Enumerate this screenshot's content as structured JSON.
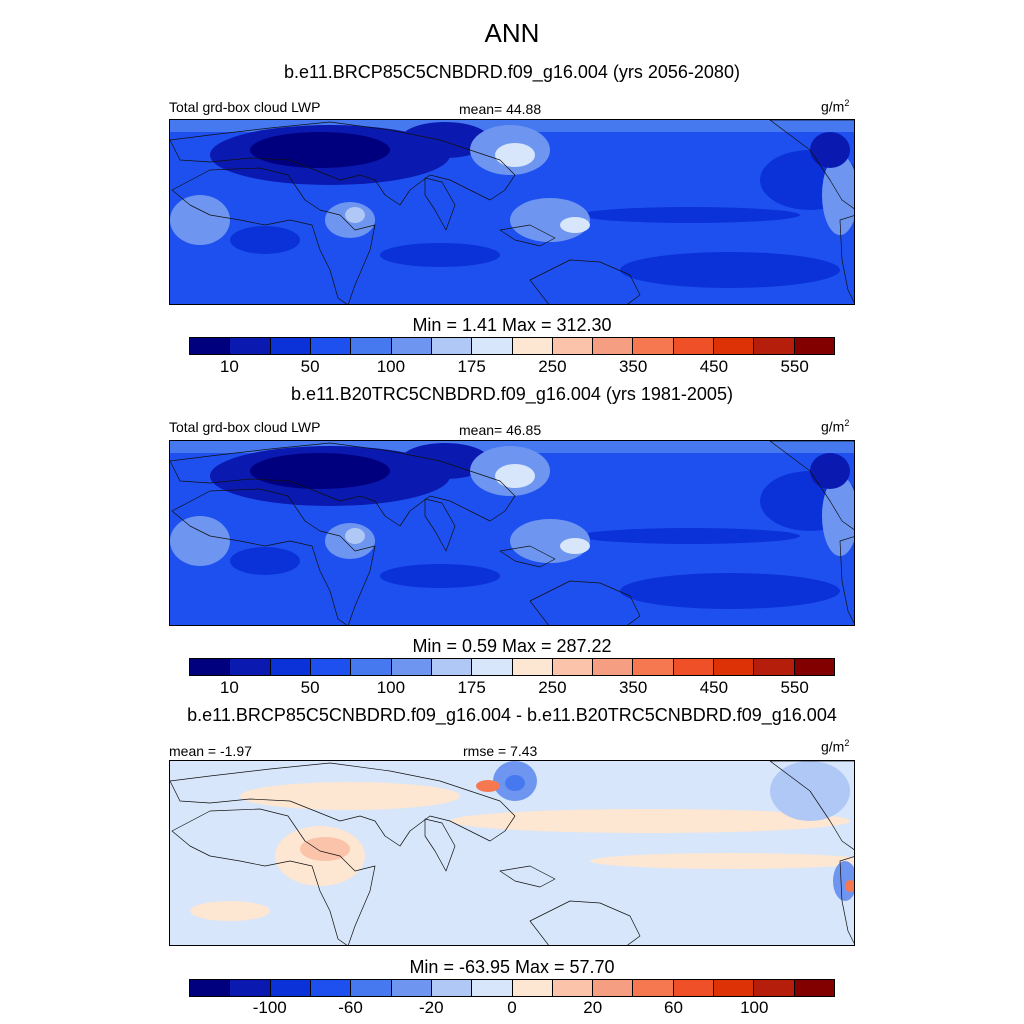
{
  "title": "ANN",
  "panels": [
    {
      "case": "b.e11.BRCP85C5CNBDRD.f09_g16.004 (yrs 2056-2080)",
      "left_label": "Total grd-box cloud LWP",
      "center_label": "mean=  44.88",
      "units": "g/m",
      "units_exp": "2",
      "minmax": "Min =   1.41 Max = 312.30",
      "kind": "abs"
    },
    {
      "case": "b.e11.B20TRC5CNBDRD.f09_g16.004 (yrs 1981-2005)",
      "left_label": "Total grd-box cloud LWP",
      "center_label": "mean=  46.85",
      "units": "g/m",
      "units_exp": "2",
      "minmax": "Min =   0.59 Max = 287.22",
      "kind": "abs"
    },
    {
      "case": "b.e11.BRCP85C5CNBDRD.f09_g16.004 - b.e11.B20TRC5CNBDRD.f09_g16.004",
      "left_label": "mean =  -1.97",
      "center_label": "rmse =   7.43",
      "units": "g/m",
      "units_exp": "2",
      "minmax": "Min = -63.95 Max =  57.70",
      "kind": "diff"
    }
  ],
  "colorbar_abs": {
    "colors": [
      "#00007f",
      "#0a19b0",
      "#0a32d8",
      "#1e50f0",
      "#4678f0",
      "#6e96f0",
      "#afc8f5",
      "#d7e6fa",
      "#fde6d2",
      "#fac3aa",
      "#f59e82",
      "#f57850",
      "#f05028",
      "#dc3205",
      "#b41e0a",
      "#820000"
    ],
    "ticks": [
      "10",
      "50",
      "100",
      "175",
      "250",
      "350",
      "450",
      "550"
    ]
  },
  "colorbar_diff": {
    "colors": [
      "#00007f",
      "#0a19b0",
      "#0a32d8",
      "#1e50f0",
      "#4678f0",
      "#6e96f0",
      "#afc8f5",
      "#d7e6fa",
      "#fde6d2",
      "#fac3aa",
      "#f59e82",
      "#f57850",
      "#f05028",
      "#dc3205",
      "#b41e0a",
      "#820000"
    ],
    "ticks": [
      "-100",
      "-60",
      "-20",
      "0",
      "20",
      "60",
      "100"
    ]
  }
}
